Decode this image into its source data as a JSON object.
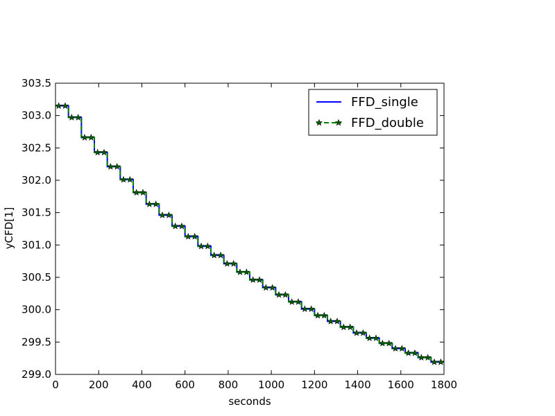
{
  "chart_data": {
    "type": "line",
    "title": "",
    "xlabel": "seconds",
    "ylabel": "yCFD[1]",
    "xlim": [
      0,
      1800
    ],
    "ylim": [
      299.0,
      303.5
    ],
    "x_ticks": [
      "0",
      "200",
      "400",
      "600",
      "800",
      "1000",
      "1200",
      "1400",
      "1600",
      "1800"
    ],
    "y_ticks": [
      "299.0",
      "299.5",
      "300.0",
      "300.5",
      "301.0",
      "301.5",
      "302.0",
      "302.5",
      "303.0",
      "303.5"
    ],
    "grid": false,
    "legend_position": "top-right",
    "step_interval_seconds": 60,
    "levels": [
      303.15,
      302.97,
      302.66,
      302.43,
      302.21,
      302.01,
      301.81,
      301.63,
      301.46,
      301.29,
      301.13,
      300.98,
      300.84,
      300.71,
      300.58,
      300.46,
      300.34,
      300.23,
      300.12,
      300.01,
      299.91,
      299.82,
      299.73,
      299.64,
      299.56,
      299.48,
      299.4,
      299.33,
      299.26,
      299.19
    ],
    "series": [
      {
        "name": "FFD_single",
        "color": "#0000ff",
        "style": "solid",
        "marker": "none"
      },
      {
        "name": "FFD_double",
        "color": "#008000",
        "style": "dashed",
        "marker": "star"
      }
    ]
  }
}
